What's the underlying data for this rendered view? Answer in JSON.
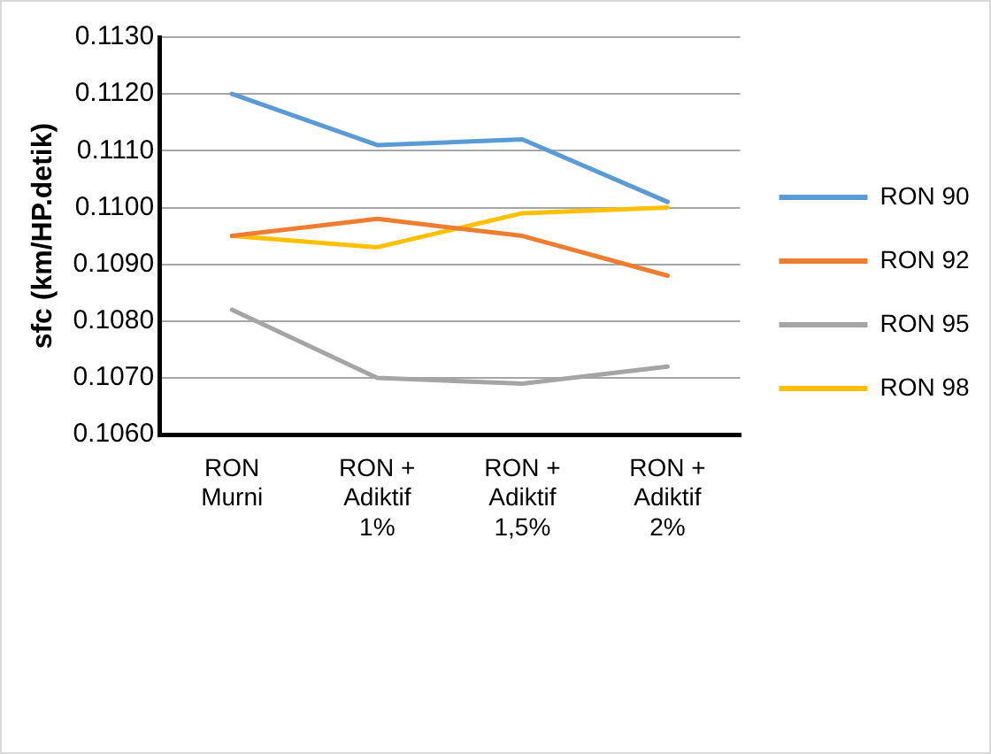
{
  "chart_data": {
    "type": "line",
    "ylabel": "sfc (km/HP.detik)",
    "categories": [
      "RON Murni",
      "RON + Adiktif 1%",
      "RON + Adiktif 1,5%",
      "RON + Adiktif 2%"
    ],
    "series": [
      {
        "name": "RON 90",
        "color": "#5b9bd5",
        "values": [
          0.112,
          0.1111,
          0.1112,
          0.1101
        ]
      },
      {
        "name": "RON 92",
        "color": "#ed7d31",
        "values": [
          0.1095,
          0.1098,
          0.1095,
          0.1088
        ]
      },
      {
        "name": "RON 95",
        "color": "#a5a5a5",
        "values": [
          0.1082,
          0.107,
          0.1069,
          0.1072
        ]
      },
      {
        "name": "RON 98",
        "color": "#ffc000",
        "values": [
          0.1095,
          0.1093,
          0.1099,
          0.11
        ]
      }
    ],
    "ylim": [
      0.106,
      0.113
    ],
    "yticks": [
      {
        "value": 0.106,
        "label": "0.1060"
      },
      {
        "value": 0.107,
        "label": "0.1070"
      },
      {
        "value": 0.108,
        "label": "0.1080"
      },
      {
        "value": 0.109,
        "label": "0.1090"
      },
      {
        "value": 0.11,
        "label": "0.1100"
      },
      {
        "value": 0.111,
        "label": "0.1110"
      },
      {
        "value": 0.112,
        "label": "0.1120"
      },
      {
        "value": 0.113,
        "label": "0.1130"
      }
    ],
    "grid": "y",
    "legend": "right",
    "marker": "none",
    "line_style": "solid"
  }
}
